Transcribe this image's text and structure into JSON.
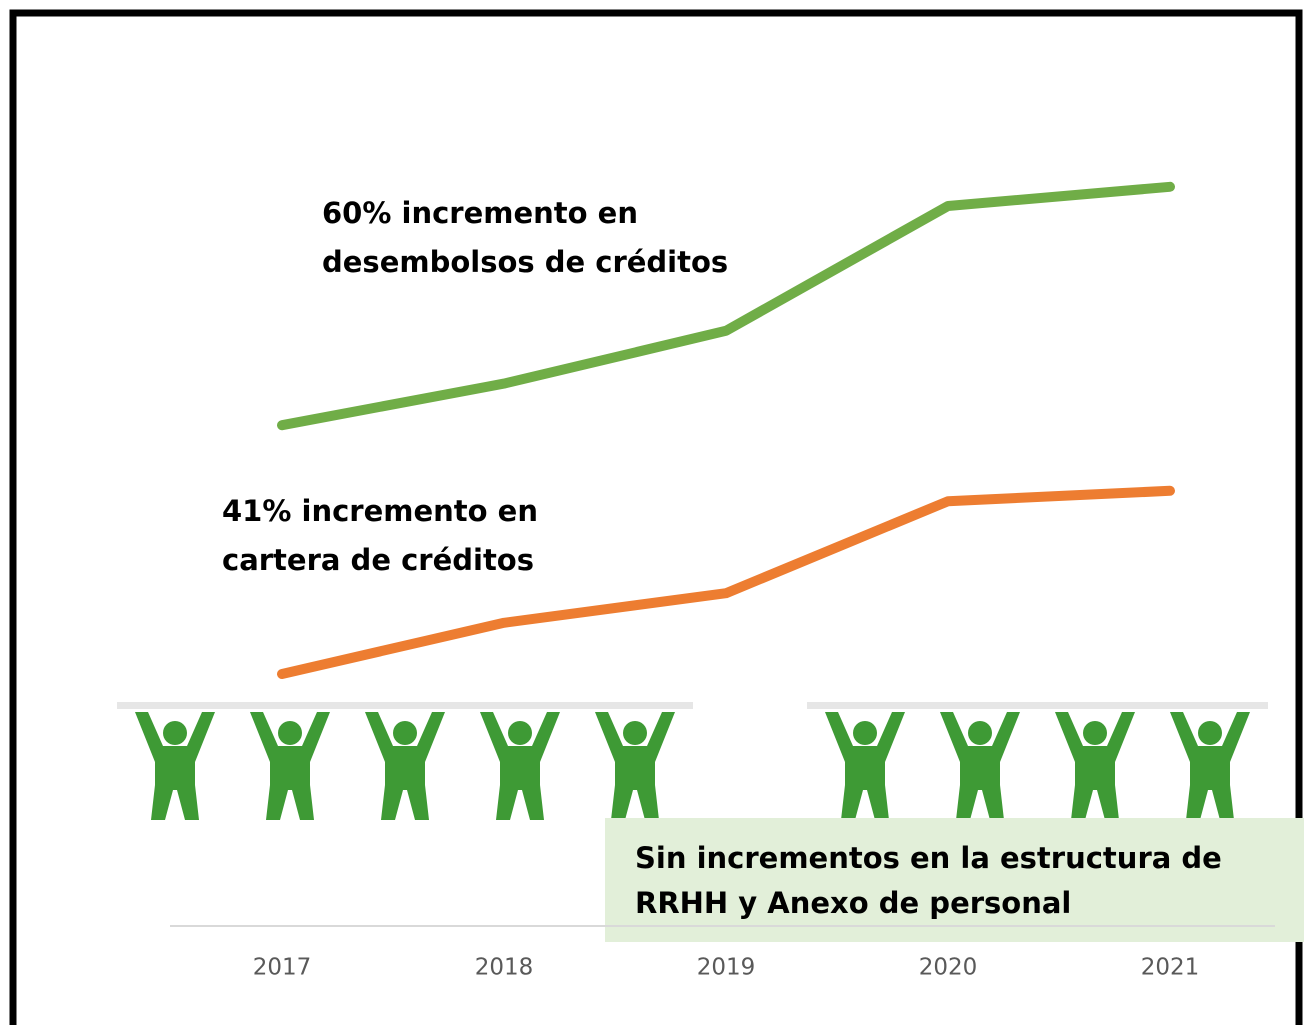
{
  "chart_data": {
    "type": "line",
    "categories": [
      "2017",
      "2018",
      "2019",
      "2020",
      "2021"
    ],
    "ylim": [
      0,
      100
    ],
    "series": [
      {
        "name": "desembolsos de créditos",
        "color": "#70ad47",
        "values": [
          62.6,
          67.8,
          74.4,
          90,
          92.4
        ],
        "annotation": [
          "60% incremento en",
          "desembolsos de créditos"
        ]
      },
      {
        "name": "cartera de créditos",
        "color": "#ed7d31",
        "values": [
          31.5,
          37.9,
          41.6,
          53.1,
          54.4
        ],
        "annotation": [
          "41% incremento en",
          "cartera de créditos"
        ]
      }
    ],
    "note": [
      "Sin incrementos en la estructura de",
      "RRHH y Anexo de personal"
    ]
  }
}
